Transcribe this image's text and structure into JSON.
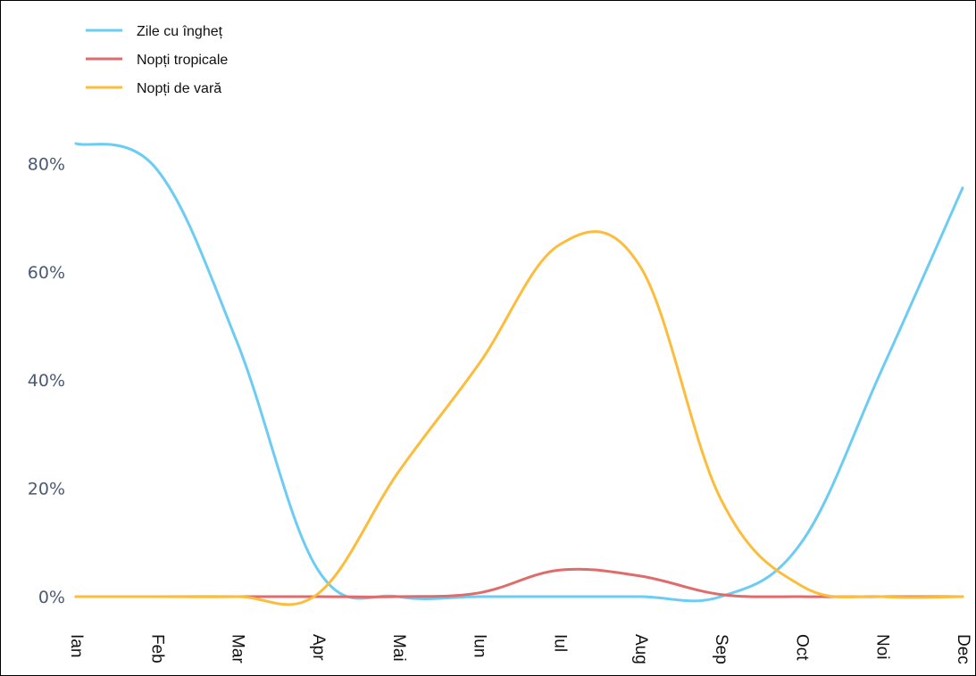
{
  "chart_data": {
    "type": "line",
    "categories": [
      "Ian",
      "Feb",
      "Mar",
      "Apr",
      "Mai",
      "Iun",
      "Iul",
      "Aug",
      "Sep",
      "Oct",
      "Noi",
      "Dec"
    ],
    "ylim": [
      0,
      90
    ],
    "yticks": [
      {
        "value": 0,
        "label": "0%"
      },
      {
        "value": 20,
        "label": "20%"
      },
      {
        "value": 40,
        "label": "40%"
      },
      {
        "value": 60,
        "label": "60%"
      },
      {
        "value": 80,
        "label": "80%"
      }
    ],
    "legend_position": "top-left",
    "grid": false,
    "series": [
      {
        "name": "Zile cu îngheț",
        "color": "#6cccf4",
        "points": [
          [
            0,
            83.7
          ],
          [
            1,
            79
          ],
          [
            2,
            47
          ],
          [
            3,
            5
          ],
          [
            4,
            0
          ],
          [
            5,
            0
          ],
          [
            6,
            0
          ],
          [
            7,
            0
          ],
          [
            8,
            0
          ],
          [
            9,
            10
          ],
          [
            10,
            42
          ],
          [
            11,
            75.5
          ]
        ]
      },
      {
        "name": "Nopți tropicale",
        "color": "#e06b6b",
        "points": [
          [
            0,
            0
          ],
          [
            1,
            0
          ],
          [
            2,
            0
          ],
          [
            3,
            0
          ],
          [
            4,
            0
          ],
          [
            5,
            0.7
          ],
          [
            6,
            4.9
          ],
          [
            7,
            3.8
          ],
          [
            8,
            0.4
          ],
          [
            9,
            0
          ],
          [
            10,
            0
          ],
          [
            11,
            0
          ]
        ]
      },
      {
        "name": "Nopți de vară",
        "color": "#fbbd3b",
        "points": [
          [
            0,
            0
          ],
          [
            1,
            0
          ],
          [
            2,
            0
          ],
          [
            3,
            0.5
          ],
          [
            4,
            23
          ],
          [
            5,
            43
          ],
          [
            6,
            65
          ],
          [
            7,
            61
          ],
          [
            8,
            18
          ],
          [
            9,
            2
          ],
          [
            10,
            0
          ],
          [
            11,
            0
          ]
        ]
      }
    ]
  }
}
